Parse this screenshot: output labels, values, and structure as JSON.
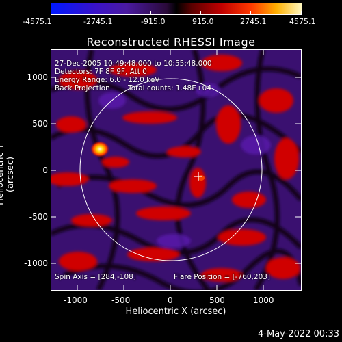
{
  "colorbar": {
    "ticks": [
      "-4575.1",
      "-2745.1",
      "-915.0",
      "915.0",
      "2745.1",
      "4575.1"
    ]
  },
  "title": "Reconstructed RHESSI Image",
  "info": {
    "line1": "27-Dec-2005 10:49:48.000 to 10:55:48.000",
    "line2": "Detectors: 7F 8F 9F, Att 0",
    "line3": "Energy Range: 6.0 - 12.0 keV",
    "line4_left": "Back Projection",
    "line4_right": "Total counts: 1.48E+04",
    "spin_axis": "Spin Axis = [284,-108]",
    "flare_position": "Flare Position = [-760,203]"
  },
  "axes": {
    "xlabel": "Heliocentric X (arcsec)",
    "ylabel": "Heliocentric Y (arcsec)",
    "xticks": [
      "-1000",
      "-500",
      "0",
      "500",
      "1000"
    ],
    "yticks": [
      "1000",
      "500",
      "0",
      "-500",
      "-1000"
    ]
  },
  "date_stamp": "4-May-2022 00:33",
  "colors": {
    "negative": "#4a1aa0",
    "positive": "#d00000",
    "peak": "#fff8c0",
    "foreground": "#ffffff"
  }
}
